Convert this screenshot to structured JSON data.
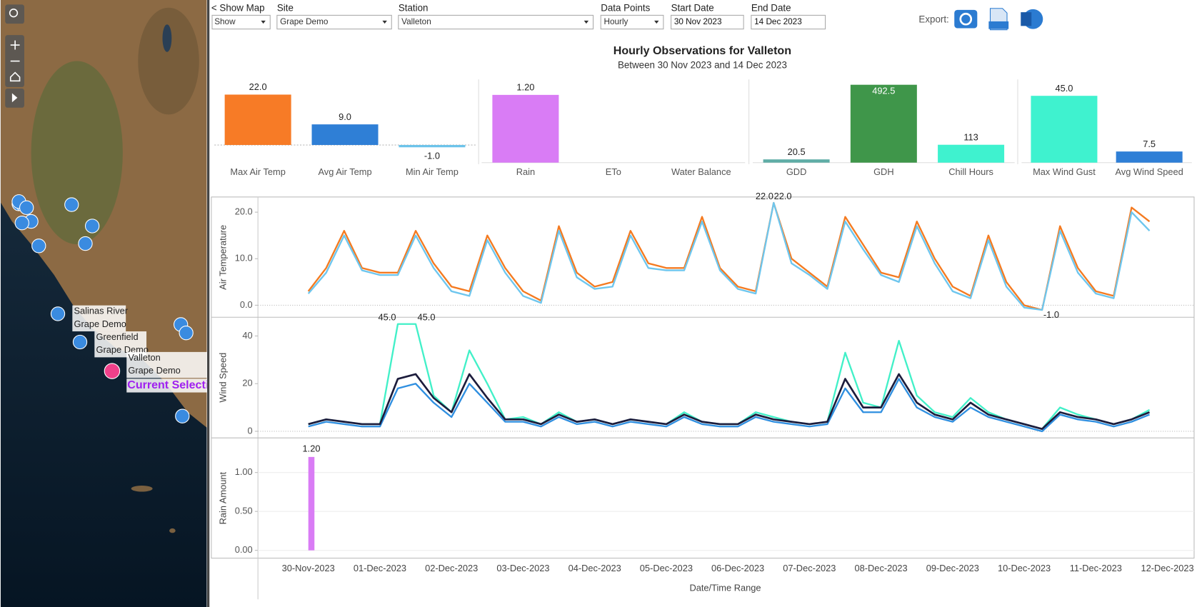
{
  "controls": [
    {
      "label": "< Show Map",
      "value": "Show"
    },
    {
      "label": "Site",
      "value": "Grape Demo"
    },
    {
      "label": "Station",
      "value": "Valleton"
    },
    {
      "label": "Data Points",
      "value": "Hourly"
    },
    {
      "label": "Start Date",
      "value": "30 Nov 2023"
    },
    {
      "label": "End Date",
      "value": "14 Dec 2023"
    }
  ],
  "export_label": "Export:",
  "header": {
    "title": "Hourly Observations for Valleton",
    "subtitle": "Between 30 Nov 2023 and 14 Dec 2023"
  },
  "map": {
    "labels": [
      [
        "Salinas River",
        "Grape Demo"
      ],
      [
        "Greenfield",
        "Grape Demo"
      ],
      [
        "Valleton",
        "Grape Demo"
      ]
    ],
    "current": "Current Selection"
  },
  "chart_data": [
    {
      "type": "bar",
      "categories": [
        "Max Air Temp",
        "Avg Air Temp",
        "Min Air Temp"
      ],
      "values": [
        22,
        9,
        -1
      ],
      "value_labels": [
        "22.0",
        "9.0",
        "-1.0"
      ],
      "colors": [
        "#f77b26",
        "#2f7fd6",
        "#6cc3ea"
      ],
      "ylim": [
        -7.7,
        27.3
      ]
    },
    {
      "type": "bar",
      "categories": [
        "Rain",
        "ETo",
        "Water Balance"
      ],
      "values": [
        1.2,
        null,
        null
      ],
      "value_labels": [
        "1.20",
        null,
        null
      ],
      "colors": [
        "#d97cf5",
        "#d97cf5",
        "#d97cf5"
      ],
      "ylim": [
        0,
        1.42
      ]
    },
    {
      "type": "bar",
      "categories": [
        "GDD",
        "GDH",
        "Chill Hours"
      ],
      "values": [
        20.5,
        492.5,
        113
      ],
      "value_labels": [
        "20.5",
        "492.5",
        "113"
      ],
      "colors": [
        "#5fada6",
        "#3f964a",
        "#3ff2cf"
      ],
      "ylim": [
        0,
        507
      ]
    },
    {
      "type": "bar",
      "categories": [
        "Max Wind Gust",
        "Avg Wind Speed"
      ],
      "values": [
        45,
        7.5
      ],
      "value_labels": [
        "45.0",
        "7.5"
      ],
      "colors": [
        "#3ff2cf",
        "#2f7fd6"
      ],
      "ylim": [
        0,
        54
      ]
    },
    {
      "type": "line",
      "ylabel": "Air Temperature",
      "ylim": [
        -2.5,
        23.1
      ],
      "yticks": [
        {
          "value": 0,
          "label": "0.0"
        },
        {
          "value": 10,
          "label": "10.0"
        },
        {
          "value": 20,
          "label": "20.0"
        }
      ],
      "grid": false,
      "series": [
        {
          "color": "#f47a20",
          "values": [
            3,
            8,
            16,
            8,
            7,
            7,
            16,
            9,
            4,
            3,
            15,
            8,
            3,
            1,
            17,
            7,
            4,
            5,
            16,
            9,
            8,
            8,
            19,
            8,
            4,
            3,
            22,
            10,
            7,
            4,
            19,
            13,
            7,
            6,
            18,
            10,
            4,
            2,
            15,
            5,
            0,
            -1,
            17,
            8,
            3,
            2,
            21,
            18
          ],
          "value_labels": [
            null,
            null,
            null,
            null,
            null,
            null,
            null,
            null,
            null,
            null,
            null,
            null,
            null,
            null,
            null,
            null,
            null,
            null,
            null,
            null,
            null,
            null,
            null,
            null,
            null,
            null,
            "22.0",
            null,
            null,
            null,
            null,
            null,
            null,
            null,
            null,
            null,
            null,
            null,
            null,
            null,
            null,
            null,
            null,
            null,
            null,
            null,
            null,
            null
          ]
        },
        {
          "color": "#6ec6ee",
          "values": [
            2.5,
            7,
            15,
            7.5,
            6.5,
            6.5,
            15,
            8,
            3,
            2,
            14,
            7,
            2,
            0.5,
            16,
            6,
            3.5,
            4,
            15,
            8,
            7.5,
            7.5,
            18,
            7.5,
            3.5,
            2.5,
            22,
            9,
            6.5,
            3.5,
            18,
            12,
            6.5,
            5,
            17,
            9,
            3,
            1.5,
            14,
            4,
            -0.5,
            -1,
            16,
            7,
            2.5,
            1.5,
            20,
            16
          ],
          "value_labels": [
            null,
            null,
            null,
            null,
            null,
            null,
            null,
            null,
            null,
            null,
            null,
            null,
            null,
            null,
            null,
            null,
            null,
            null,
            null,
            null,
            null,
            null,
            null,
            null,
            null,
            null,
            "22.0",
            null,
            null,
            null,
            null,
            null,
            null,
            null,
            null,
            null,
            null,
            null,
            null,
            null,
            null,
            "-1.0",
            null,
            null,
            null,
            null,
            null,
            null
          ]
        }
      ]
    },
    {
      "type": "line",
      "ylabel": "Wind Speed",
      "ylim": [
        -2.6,
        47.7
      ],
      "yticks": [
        0,
        20,
        40
      ],
      "grid": false,
      "series": [
        {
          "color": "#42f0c8",
          "values": [
            3,
            5,
            4,
            3,
            3,
            45,
            45,
            15,
            8,
            34,
            20,
            5,
            6,
            3,
            8,
            4,
            5,
            3,
            5,
            4,
            3,
            8,
            4,
            3,
            3,
            8,
            6,
            4,
            3,
            4,
            33,
            12,
            10,
            38,
            15,
            8,
            6,
            14,
            8,
            5,
            3,
            1,
            10,
            7,
            5,
            3,
            5,
            9
          ],
          "value_labels": [
            null,
            null,
            null,
            null,
            null,
            "45.0",
            "45.0",
            null,
            null,
            null,
            null,
            null,
            null,
            null,
            null,
            null,
            null,
            null,
            null,
            null,
            null,
            null,
            null,
            null,
            null,
            null,
            null,
            null,
            null,
            null,
            null,
            null,
            null,
            null,
            null,
            null,
            null,
            null,
            null,
            null,
            null,
            null,
            null,
            null,
            null,
            null,
            null,
            null
          ]
        },
        {
          "color": "#2f8fe0",
          "values": [
            2,
            4,
            3,
            2,
            2,
            18,
            20,
            12,
            6,
            20,
            12,
            4,
            4,
            2,
            6,
            3,
            4,
            2,
            4,
            3,
            2,
            6,
            3,
            2,
            2,
            6,
            4,
            3,
            2,
            3,
            18,
            8,
            8,
            22,
            10,
            6,
            4,
            10,
            6,
            4,
            2,
            0,
            7,
            5,
            4,
            2,
            4,
            7
          ]
        },
        {
          "color": "#1c1c3c",
          "values": [
            3,
            5,
            4,
            3,
            3,
            22,
            24,
            14,
            8,
            24,
            14,
            5,
            5,
            3,
            7,
            4,
            5,
            3,
            5,
            4,
            3,
            7,
            4,
            3,
            3,
            7,
            5,
            4,
            3,
            4,
            22,
            10,
            10,
            24,
            12,
            7,
            5,
            12,
            7,
            5,
            3,
            1,
            8,
            6,
            5,
            3,
            5,
            8
          ]
        }
      ]
    },
    {
      "type": "bar",
      "ylabel": "Rain Amount",
      "ylim": [
        -0.1,
        1.44
      ],
      "yticks": [
        {
          "value": 0,
          "label": "0.00"
        },
        {
          "value": 0.5,
          "label": "0.50"
        },
        {
          "value": 1,
          "label": "1.00"
        }
      ],
      "grid": true,
      "color": "#d97cf5",
      "values": [
        1.2,
        0,
        0,
        0,
        0,
        0,
        0,
        0,
        0,
        0,
        0,
        0,
        0,
        0,
        0,
        0,
        0,
        0,
        0,
        0,
        0,
        0,
        0,
        0,
        0,
        0,
        0,
        0,
        0,
        0,
        0,
        0,
        0,
        0,
        0,
        0,
        0,
        0,
        0,
        0,
        0,
        0,
        0,
        0,
        0,
        0,
        0,
        0
      ],
      "value_labels": [
        "1.20",
        null,
        null,
        null,
        null,
        null,
        null,
        null,
        null,
        null,
        null,
        null,
        null,
        null,
        null,
        null,
        null,
        null,
        null,
        null,
        null,
        null,
        null,
        null,
        null,
        null,
        null,
        null,
        null,
        null,
        null,
        null,
        null,
        null,
        null,
        null,
        null,
        null,
        null,
        null,
        null,
        null,
        null,
        null,
        null,
        null,
        null,
        null
      ],
      "xticks": [
        "30-Nov-2023",
        "01-Dec-2023",
        "02-Dec-2023",
        "03-Dec-2023",
        "04-Dec-2023",
        "05-Dec-2023",
        "06-Dec-2023",
        "07-Dec-2023",
        "08-Dec-2023",
        "09-Dec-2023",
        "10-Dec-2023",
        "11-Dec-2023",
        "12-Dec-2023"
      ],
      "xlabel": "Date/Time Range"
    }
  ]
}
